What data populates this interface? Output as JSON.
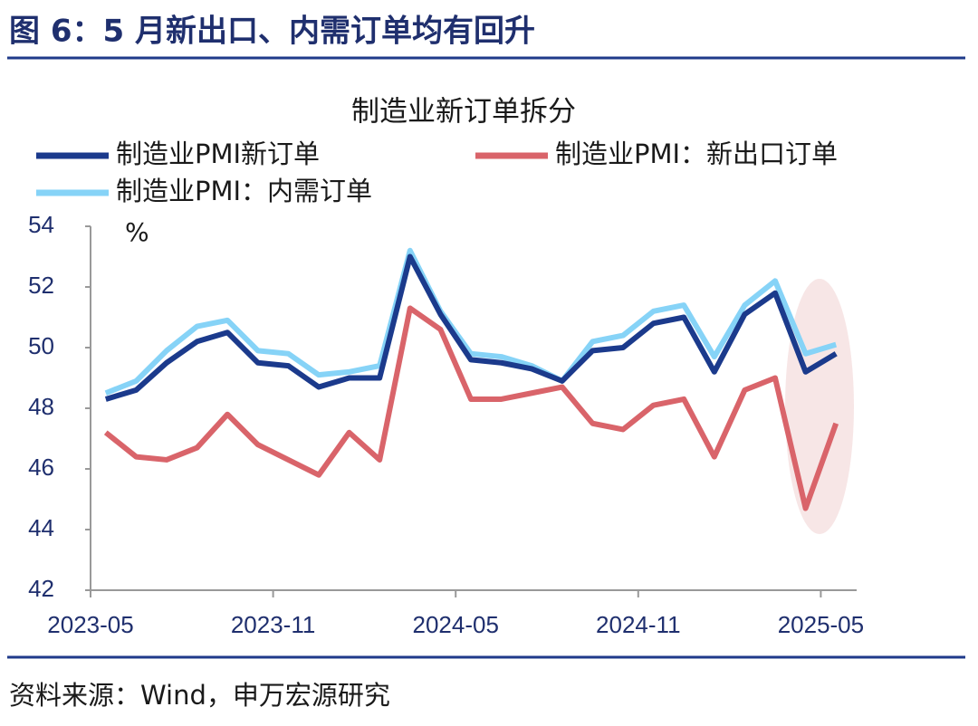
{
  "header": {
    "title": "图 6：5 月新出口、内需订单均有回升"
  },
  "chart_data": {
    "type": "line",
    "title": "制造业新订单拆分",
    "y_unit": "%",
    "categories": [
      "2023-05",
      null,
      null,
      null,
      null,
      null,
      "2023-11",
      null,
      null,
      null,
      null,
      null,
      "2024-05",
      null,
      null,
      null,
      null,
      null,
      "2024-11",
      null,
      null,
      null,
      null,
      null,
      "2025-05"
    ],
    "series": [
      {
        "name": "制造业PMI新订单",
        "color": "#1b3a8c",
        "values": [
          48.3,
          48.6,
          49.5,
          50.2,
          50.5,
          49.5,
          49.4,
          48.7,
          49.0,
          49.0,
          53.0,
          51.1,
          49.6,
          49.5,
          49.3,
          48.9,
          49.9,
          50.0,
          50.8,
          51.0,
          49.2,
          51.1,
          51.8,
          49.2,
          49.8
        ]
      },
      {
        "name": "制造业PMI：新出口订单",
        "color": "#d9646a",
        "values": [
          47.2,
          46.4,
          46.3,
          46.7,
          47.8,
          46.8,
          46.3,
          45.8,
          47.2,
          46.3,
          51.3,
          50.6,
          48.3,
          48.3,
          48.5,
          48.7,
          47.5,
          47.3,
          48.1,
          48.3,
          46.4,
          48.6,
          49.0,
          44.7,
          47.5
        ]
      },
      {
        "name": "制造业PMI：内需订单",
        "color": "#86d3f7",
        "values": [
          48.5,
          48.9,
          49.9,
          50.7,
          50.9,
          49.9,
          49.8,
          49.1,
          49.2,
          49.4,
          53.2,
          51.2,
          49.8,
          49.7,
          49.4,
          48.9,
          50.2,
          50.4,
          51.2,
          51.4,
          49.7,
          51.4,
          52.2,
          49.8,
          50.1
        ]
      }
    ],
    "ylim": [
      42,
      54
    ],
    "yticks": [
      42,
      44,
      46,
      48,
      50,
      52,
      54
    ]
  },
  "source": "资料来源：Wind，申万宏源研究"
}
